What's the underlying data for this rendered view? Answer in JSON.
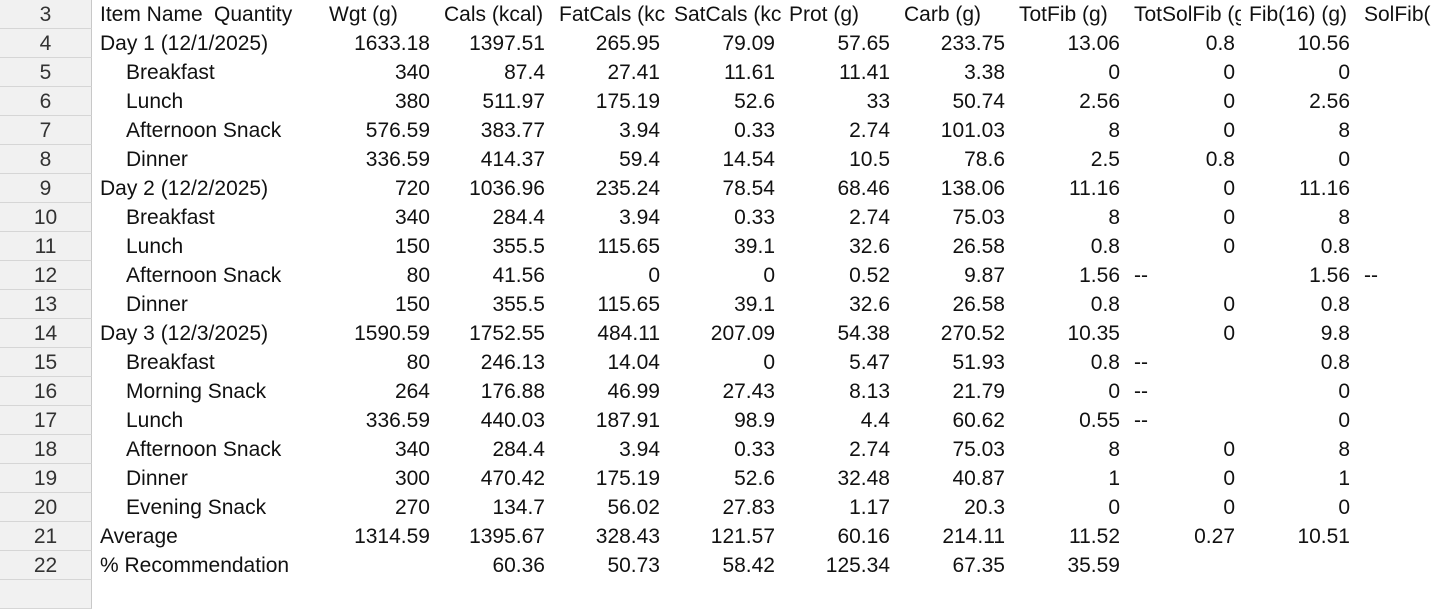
{
  "columns": [
    "Item Name",
    "Quantity",
    "Wgt (g)",
    "Cals (kcal)",
    "FatCals (kcal)",
    "SatCals (kcal)",
    "Prot (g)",
    "Carb (g)",
    "TotFib (g)",
    "TotSolFib (g)",
    "Fib(16) (g)",
    "SolFib("
  ],
  "header_row_number": "3",
  "rows": [
    {
      "n": "4",
      "indent": false,
      "cells": [
        "Day 1 (12/1/2025)",
        "",
        "1633.18",
        "1397.51",
        "265.95",
        "79.09",
        "57.65",
        "233.75",
        "13.06",
        "0.8",
        "10.56",
        ""
      ]
    },
    {
      "n": "5",
      "indent": true,
      "cells": [
        "Breakfast",
        "",
        "340",
        "87.4",
        "27.41",
        "11.61",
        "11.41",
        "3.38",
        "0",
        "0",
        "0",
        ""
      ]
    },
    {
      "n": "6",
      "indent": true,
      "cells": [
        "Lunch",
        "",
        "380",
        "511.97",
        "175.19",
        "52.6",
        "33",
        "50.74",
        "2.56",
        "0",
        "2.56",
        ""
      ]
    },
    {
      "n": "7",
      "indent": true,
      "cells": [
        "Afternoon Snack",
        "",
        "576.59",
        "383.77",
        "3.94",
        "0.33",
        "2.74",
        "101.03",
        "8",
        "0",
        "8",
        ""
      ]
    },
    {
      "n": "8",
      "indent": true,
      "cells": [
        "Dinner",
        "",
        "336.59",
        "414.37",
        "59.4",
        "14.54",
        "10.5",
        "78.6",
        "2.5",
        "0.8",
        "0",
        ""
      ]
    },
    {
      "n": "9",
      "indent": false,
      "cells": [
        "Day 2 (12/2/2025)",
        "",
        "720",
        "1036.96",
        "235.24",
        "78.54",
        "68.46",
        "138.06",
        "11.16",
        "0",
        "11.16",
        ""
      ]
    },
    {
      "n": "10",
      "indent": true,
      "cells": [
        "Breakfast",
        "",
        "340",
        "284.4",
        "3.94",
        "0.33",
        "2.74",
        "75.03",
        "8",
        "0",
        "8",
        ""
      ]
    },
    {
      "n": "11",
      "indent": true,
      "cells": [
        "Lunch",
        "",
        "150",
        "355.5",
        "115.65",
        "39.1",
        "32.6",
        "26.58",
        "0.8",
        "0",
        "0.8",
        ""
      ]
    },
    {
      "n": "12",
      "indent": true,
      "cells": [
        "Afternoon Snack",
        "",
        "80",
        "41.56",
        "0",
        "0",
        "0.52",
        "9.87",
        "1.56",
        "--",
        "1.56",
        "--"
      ]
    },
    {
      "n": "13",
      "indent": true,
      "cells": [
        "Dinner",
        "",
        "150",
        "355.5",
        "115.65",
        "39.1",
        "32.6",
        "26.58",
        "0.8",
        "0",
        "0.8",
        ""
      ]
    },
    {
      "n": "14",
      "indent": false,
      "cells": [
        "Day 3 (12/3/2025)",
        "",
        "1590.59",
        "1752.55",
        "484.11",
        "207.09",
        "54.38",
        "270.52",
        "10.35",
        "0",
        "9.8",
        ""
      ]
    },
    {
      "n": "15",
      "indent": true,
      "cells": [
        "Breakfast",
        "",
        "80",
        "246.13",
        "14.04",
        "0",
        "5.47",
        "51.93",
        "0.8",
        "--",
        "0.8",
        ""
      ]
    },
    {
      "n": "16",
      "indent": true,
      "cells": [
        "Morning Snack",
        "",
        "264",
        "176.88",
        "46.99",
        "27.43",
        "8.13",
        "21.79",
        "0",
        "--",
        "0",
        ""
      ]
    },
    {
      "n": "17",
      "indent": true,
      "cells": [
        "Lunch",
        "",
        "336.59",
        "440.03",
        "187.91",
        "98.9",
        "4.4",
        "60.62",
        "0.55",
        "--",
        "0",
        ""
      ]
    },
    {
      "n": "18",
      "indent": true,
      "cells": [
        "Afternoon Snack",
        "",
        "340",
        "284.4",
        "3.94",
        "0.33",
        "2.74",
        "75.03",
        "8",
        "0",
        "8",
        ""
      ]
    },
    {
      "n": "19",
      "indent": true,
      "cells": [
        "Dinner",
        "",
        "300",
        "470.42",
        "175.19",
        "52.6",
        "32.48",
        "40.87",
        "1",
        "0",
        "1",
        ""
      ]
    },
    {
      "n": "20",
      "indent": true,
      "cells": [
        "Evening Snack",
        "",
        "270",
        "134.7",
        "56.02",
        "27.83",
        "1.17",
        "20.3",
        "0",
        "0",
        "0",
        ""
      ]
    },
    {
      "n": "21",
      "indent": false,
      "cells": [
        "Average",
        "",
        "1314.59",
        "1395.67",
        "328.43",
        "121.57",
        "60.16",
        "214.11",
        "11.52",
        "0.27",
        "10.51",
        ""
      ]
    },
    {
      "n": "22",
      "indent": false,
      "cells": [
        "% Recommendation",
        "",
        "",
        "60.36",
        "50.73",
        "58.42",
        "125.34",
        "67.35",
        "35.59",
        "",
        "",
        ""
      ]
    }
  ]
}
